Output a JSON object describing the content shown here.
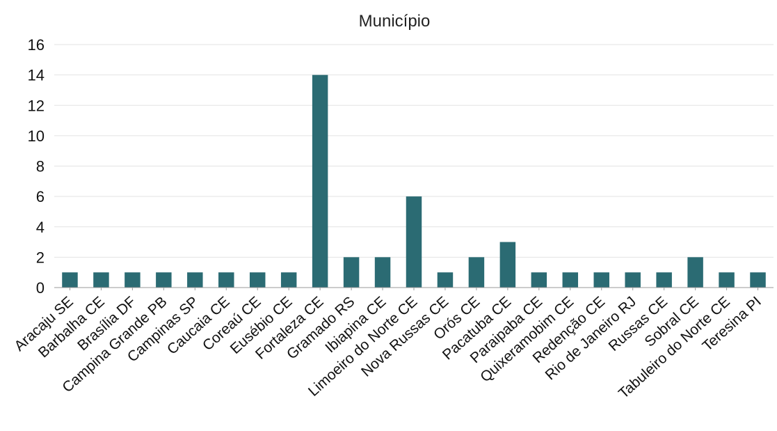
{
  "chart_data": {
    "type": "bar",
    "title": "Município",
    "xlabel": "",
    "ylabel": "",
    "ylim": [
      0,
      16
    ],
    "yticks": [
      "0",
      "2",
      "4",
      "6",
      "8",
      "10",
      "12",
      "14",
      "16"
    ],
    "grid": true,
    "bar_color": "#2b6b73",
    "categories": [
      "Aracaju SE",
      "Barbalha CE",
      "Brasília DF",
      "Campina Grande PB",
      "Campinas SP",
      "Caucaia CE",
      "Coreaú CE",
      "Eusébio CE",
      "Fortaleza CE",
      "Gramado RS",
      "Ibiapina CE",
      "Limoeiro do Norte CE",
      "Nova Russas CE",
      "Orós CE",
      "Pacatuba CE",
      "Paraipaba CE",
      "Quixeramobim CE",
      "Redenção CE",
      "Rio de Janeiro RJ",
      "Russas CE",
      "Sobral CE",
      "Tabuleiro do Norte CE",
      "Teresina PI"
    ],
    "values": [
      1,
      1,
      1,
      1,
      1,
      1,
      1,
      1,
      14,
      2,
      2,
      6,
      1,
      2,
      3,
      1,
      1,
      1,
      1,
      1,
      2,
      1,
      1
    ]
  }
}
